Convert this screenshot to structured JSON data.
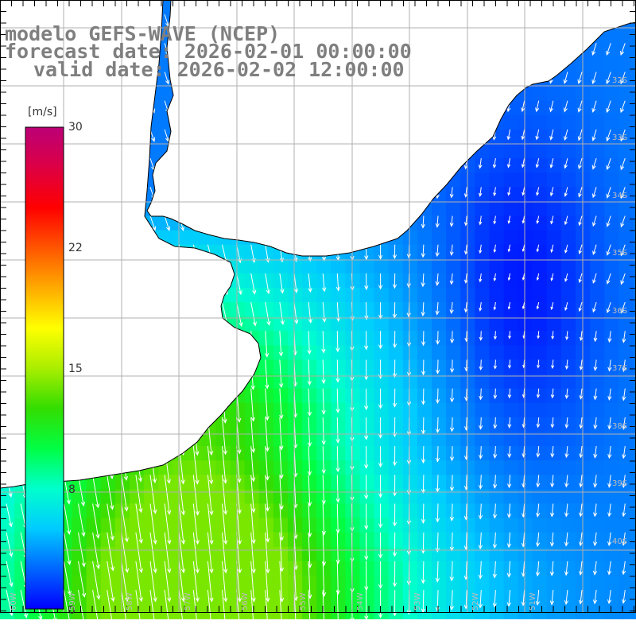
{
  "title": {
    "line1": "modelo GEFS-WAVE (NCEP)",
    "line2": "forecast date: 2026-02-01 00:00:00",
    "line3": "valid date: 2026-02-02 12:00:00"
  },
  "colorbar": {
    "unit": "[m/s]",
    "ticks": [
      "30",
      "22",
      "15",
      "8",
      "0"
    ],
    "min": 0,
    "max": 30,
    "stops": [
      "#0000ff",
      "#0066ff",
      "#00ccff",
      "#00ffcc",
      "#00ff44",
      "#33dd00",
      "#aaee00",
      "#ffff00",
      "#ffaa00",
      "#ff5500",
      "#ff0000",
      "#dd0044",
      "#bb0077"
    ]
  },
  "map": {
    "field": "wind speed with direction arrows",
    "lat_labels": [
      "32S",
      "33S",
      "34S",
      "35S",
      "36S",
      "37S",
      "38S",
      "39S",
      "40S"
    ],
    "lon_labels": [
      "60W",
      "59W",
      "58W",
      "57W",
      "56W",
      "55W",
      "54W",
      "53W",
      "52W",
      "51W"
    ],
    "land_color": "#ffffff",
    "grid_color": "#b0b0b0",
    "arrow_color": "#ffffff"
  }
}
